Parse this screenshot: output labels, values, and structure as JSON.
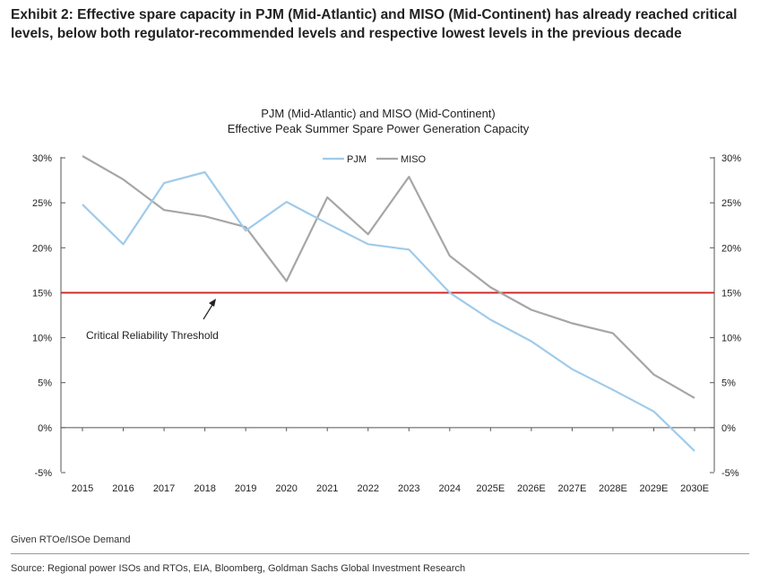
{
  "exhibit_title": "Exhibit 2: Effective spare capacity in PJM (Mid-Atlantic) and MISO (Mid-Continent) has already reached critical levels, below both regulator-recommended levels and respective lowest levels in the previous decade",
  "footnote": "Given RTOe/ISOe Demand",
  "source": "Source: Regional power ISOs and RTOs, EIA, Bloomberg, Goldman Sachs Global Investment Research",
  "chart_data": {
    "type": "line",
    "title": "PJM (Mid-Atlantic) and MISO (Mid-Continent)",
    "subtitle": "Effective Peak Summer Spare Power Generation Capacity",
    "categories": [
      "2015",
      "2016",
      "2017",
      "2018",
      "2019",
      "2020",
      "2021",
      "2022",
      "2023",
      "2024",
      "2025E",
      "2026E",
      "2027E",
      "2028E",
      "2029E",
      "2030E"
    ],
    "series": [
      {
        "name": "PJM",
        "color": "#9fcbea",
        "values": [
          24.8,
          20.4,
          27.2,
          28.4,
          21.9,
          25.1,
          22.7,
          20.4,
          19.8,
          15.0,
          12.0,
          9.6,
          6.5,
          4.2,
          1.8,
          -2.6
        ]
      },
      {
        "name": "MISO",
        "color": "#a6a6a6",
        "values": [
          30.2,
          27.6,
          24.2,
          23.5,
          22.3,
          16.3,
          25.6,
          21.5,
          27.9,
          19.1,
          15.6,
          13.1,
          11.6,
          10.5,
          5.9,
          3.3
        ]
      }
    ],
    "threshold": {
      "value": 15,
      "label": "Critical Reliability Threshold",
      "color": "#cc2222"
    },
    "ylim": [
      -5,
      30
    ],
    "yticks": [
      30,
      25,
      20,
      15,
      10,
      5,
      0,
      -5
    ],
    "ytick_labels": [
      "30%",
      "25%",
      "20%",
      "15%",
      "10%",
      "5%",
      "0%",
      "-5%"
    ],
    "legend_position": "top-center",
    "grid": false
  }
}
